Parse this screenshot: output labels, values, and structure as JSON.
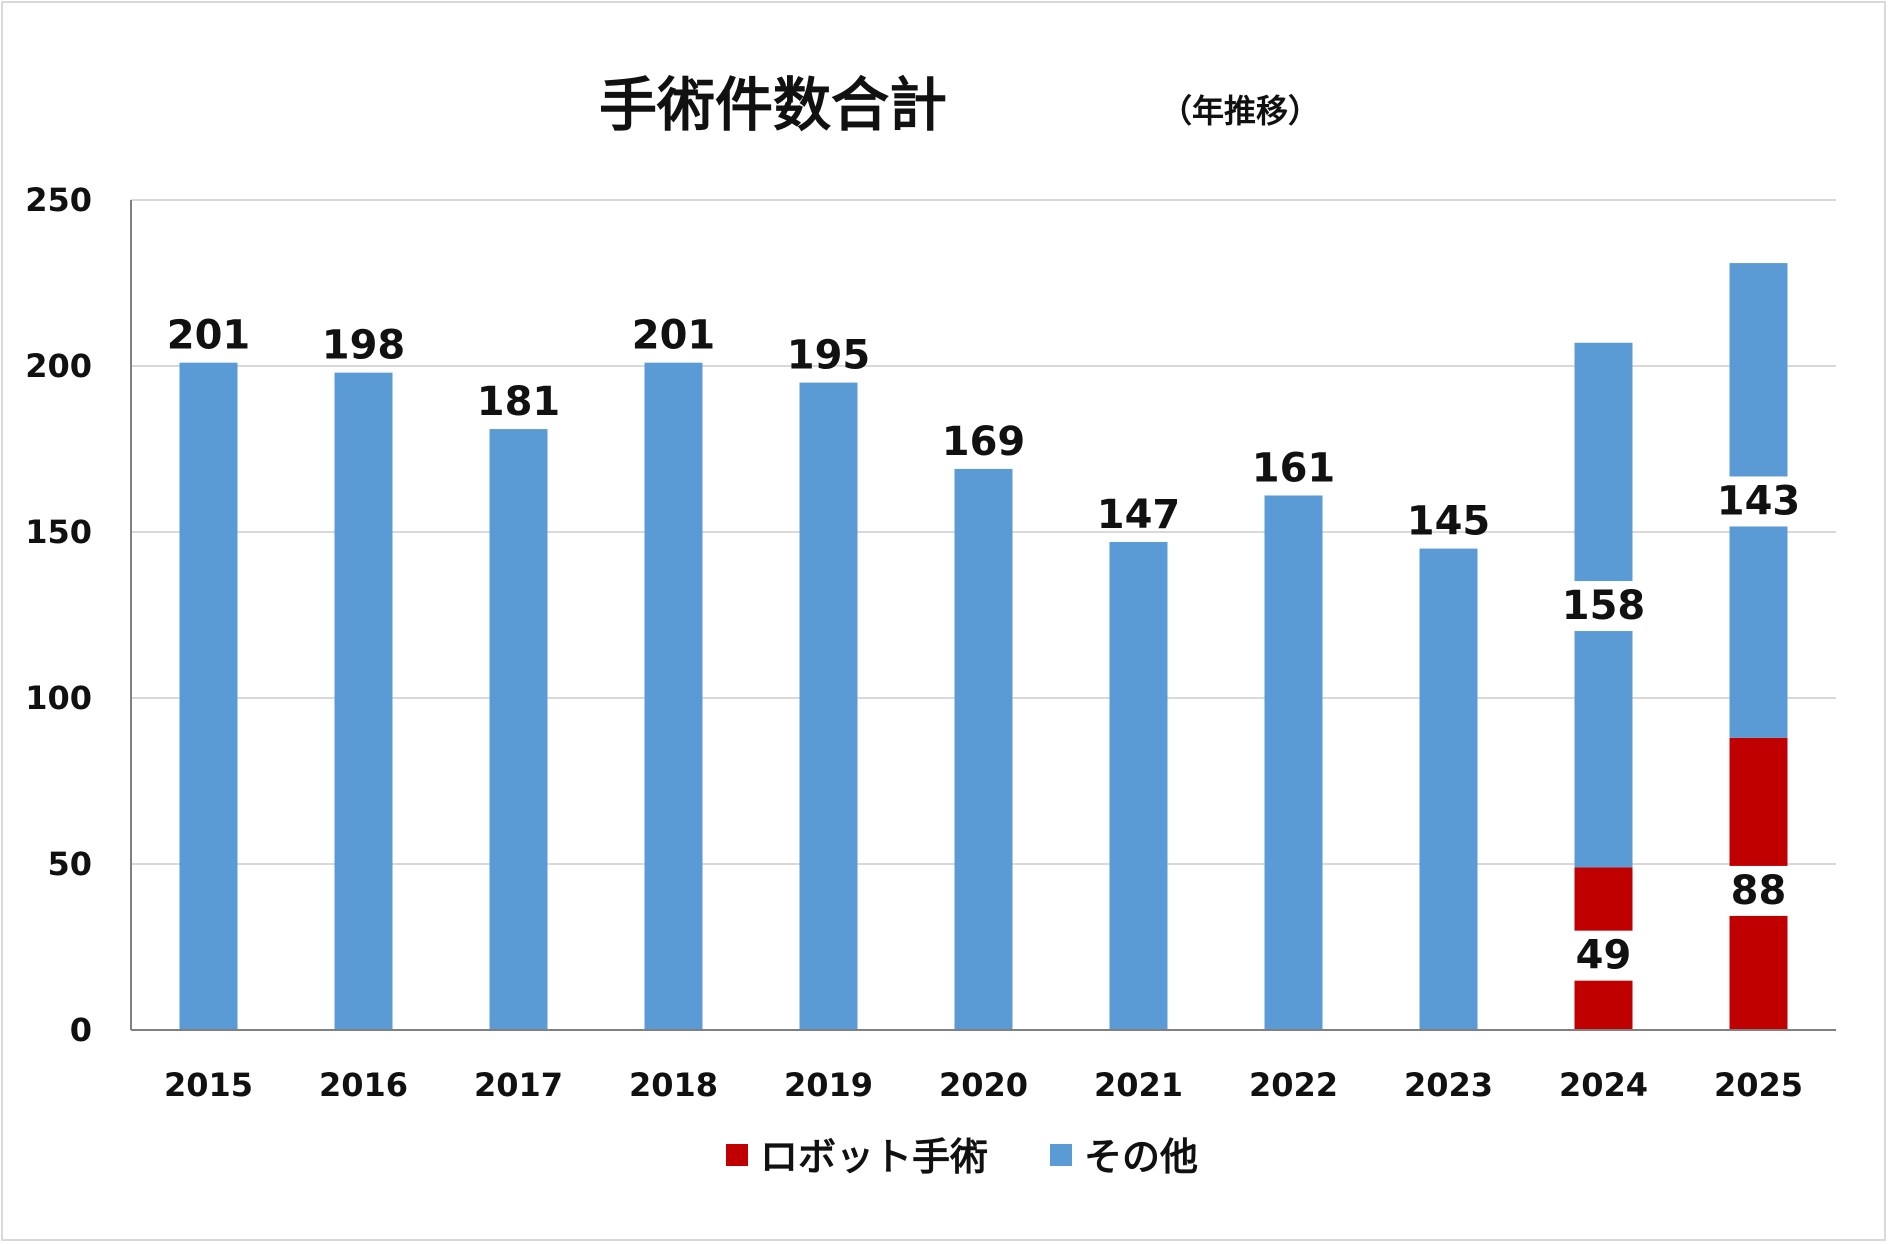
{
  "chart_data": {
    "type": "bar",
    "title": "手術件数合計",
    "subtitle": "（年推移）",
    "categories": [
      "2015",
      "2016",
      "2017",
      "2018",
      "2019",
      "2020",
      "2021",
      "2022",
      "2023",
      "2024",
      "2025"
    ],
    "series": [
      {
        "name": "ロボット手術",
        "color": "#c00000",
        "values": [
          null,
          null,
          null,
          null,
          null,
          null,
          null,
          null,
          null,
          49,
          88
        ]
      },
      {
        "name": "その他",
        "color": "#5b9bd5",
        "values": [
          201,
          198,
          181,
          201,
          195,
          169,
          147,
          161,
          145,
          158,
          143
        ]
      }
    ],
    "stacked": true,
    "ylim": [
      0,
      250
    ],
    "yticks": [
      "0",
      "50",
      "100",
      "150",
      "200",
      "250"
    ],
    "grid": true,
    "legend_position": "bottom",
    "gridline_color": "#d9d9d9",
    "axis_color": "#808080"
  }
}
